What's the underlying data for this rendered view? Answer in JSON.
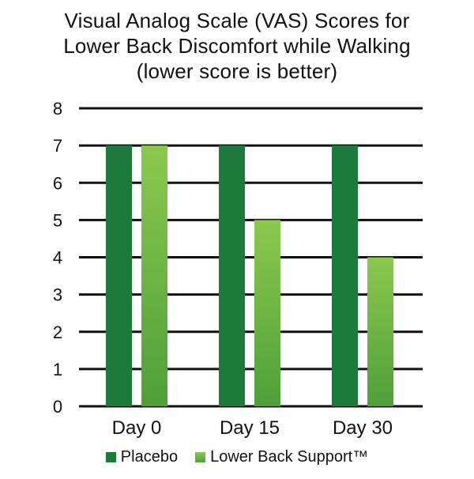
{
  "chart_data": {
    "type": "bar",
    "title_lines": [
      "Visual Analog Scale (VAS) Scores for",
      "Lower Back Discomfort while Walking",
      "(lower score is better)"
    ],
    "title": "Visual Analog Scale (VAS) Scores for Lower Back Discomfort while Walking (lower score is better)",
    "categories": [
      "Day 0",
      "Day 15",
      "Day 30"
    ],
    "series": [
      {
        "name": "Placebo",
        "values": [
          7,
          7,
          7
        ],
        "color": "#1e7a3c"
      },
      {
        "name": "Lower Back Support™",
        "values": [
          7,
          5,
          4
        ],
        "color": "#6fba45"
      }
    ],
    "yticks": [
      "0",
      "1",
      "2",
      "3",
      "4",
      "5",
      "6",
      "7",
      "8"
    ],
    "ylim": [
      0,
      8
    ],
    "xlabel": "",
    "ylabel": "",
    "grid": true,
    "legend_position": "bottom-center"
  }
}
